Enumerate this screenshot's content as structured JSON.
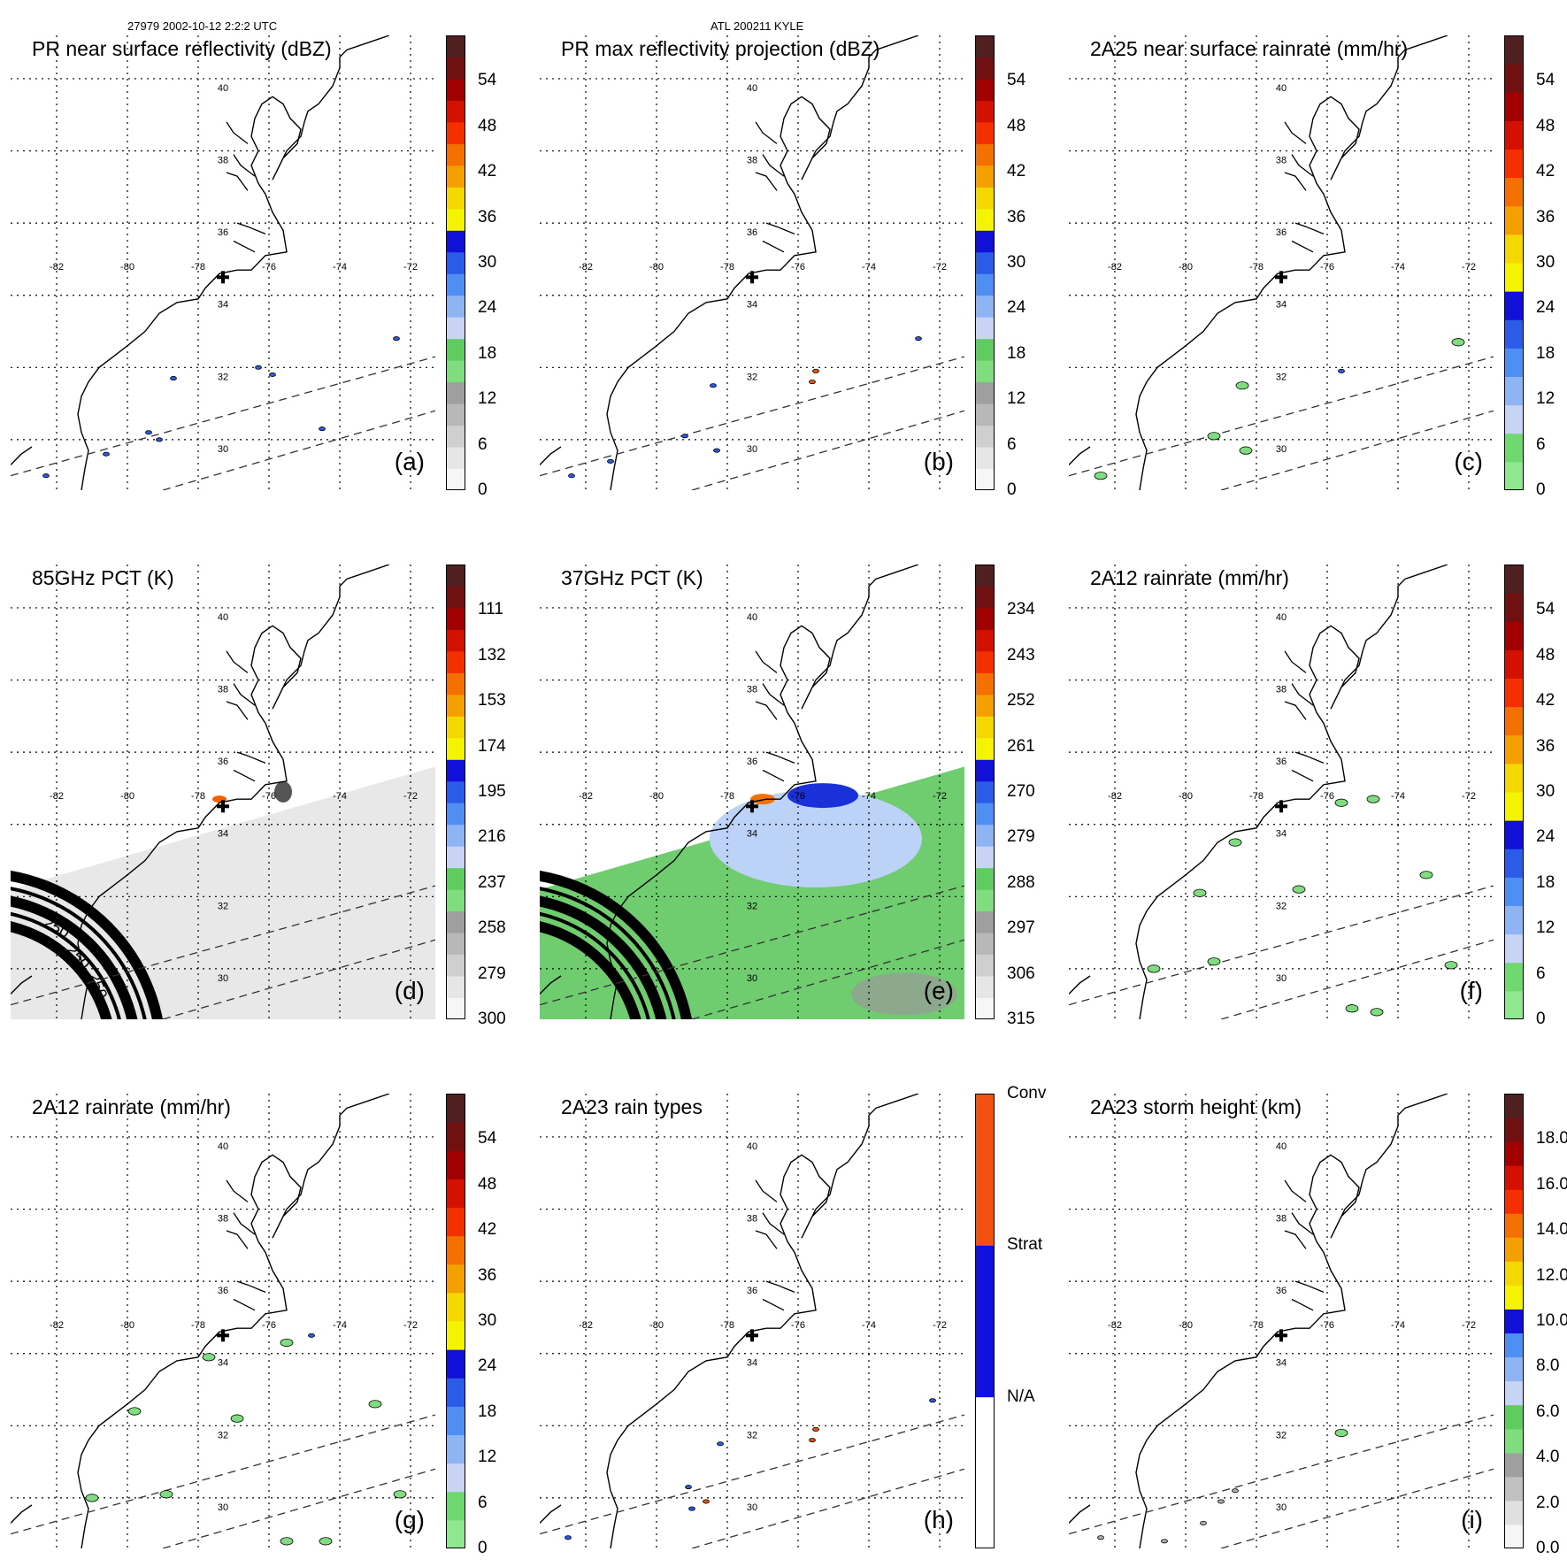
{
  "header": {
    "orbit_time": "27979 2002-10-12 2:2:2 UTC",
    "storm": "ATL 200211 KYLE"
  },
  "map": {
    "lon_labels": [
      "-82",
      "-80",
      "-78",
      "-76",
      "-74",
      "-72"
    ],
    "lat_labels": [
      "30",
      "32",
      "34",
      "36",
      "38",
      "40"
    ],
    "lon_values": [
      -82,
      -80,
      -78,
      -76,
      -74,
      -72
    ],
    "lat_values": [
      30,
      32,
      34,
      36,
      38,
      40
    ],
    "extent": {
      "lon_min": -83.3,
      "lon_max": -71.3,
      "lat_min": 28.6,
      "lat_max": 41.2
    },
    "storm_center": {
      "lon": -77.3,
      "lat": 34.5
    }
  },
  "colors": {
    "coast": "#000000",
    "grid": "#000000",
    "swath": "#333333"
  },
  "panels": [
    {
      "id": "a",
      "title": "PR near surface reflectivity (dBZ)",
      "label": "(a)",
      "ticks": [
        "0",
        "6",
        "12",
        "18",
        "24",
        "30",
        "36",
        "42",
        "48",
        "54"
      ],
      "top_label": "",
      "bar": "standard"
    },
    {
      "id": "b",
      "title": "PR max reflectivity projection (dBZ)",
      "label": "(b)",
      "ticks": [
        "0",
        "6",
        "12",
        "18",
        "24",
        "30",
        "36",
        "42",
        "48",
        "54"
      ],
      "top_label": "",
      "bar": "standard"
    },
    {
      "id": "c",
      "title": "2A25 near surface rainrate (mm/hr)",
      "label": "(c)",
      "ticks": [
        "0",
        "6",
        "12",
        "18",
        "24",
        "30",
        "36",
        "42",
        "48",
        "54"
      ],
      "top_label": "",
      "bar": "rain"
    },
    {
      "id": "d",
      "title": "85GHz PCT (K)",
      "label": "(d)",
      "ticks": [
        "300",
        "279",
        "258",
        "237",
        "216",
        "195",
        "174",
        "153",
        "132",
        "111"
      ],
      "top_label": "",
      "bar": "standard"
    },
    {
      "id": "e",
      "title": "37GHz PCT (K)",
      "label": "(e)",
      "ticks": [
        "315",
        "306",
        "297",
        "288",
        "279",
        "270",
        "261",
        "252",
        "243",
        "234"
      ],
      "top_label": "",
      "bar": "standard"
    },
    {
      "id": "f",
      "title": "2A12 rainrate (mm/hr)",
      "label": "(f)",
      "ticks": [
        "0",
        "6",
        "12",
        "18",
        "24",
        "30",
        "36",
        "42",
        "48",
        "54"
      ],
      "top_label": "",
      "bar": "rain"
    },
    {
      "id": "g",
      "title": "2A12 rainrate (mm/hr)",
      "label": "(g)",
      "ticks": [
        "0",
        "6",
        "12",
        "18",
        "24",
        "30",
        "36",
        "42",
        "48",
        "54"
      ],
      "top_label": "",
      "bar": "rain"
    },
    {
      "id": "h",
      "title": "2A23 rain types",
      "label": "(h)",
      "ticks": [
        "N/A",
        "Strat",
        "Conv"
      ],
      "top_label": "",
      "bar": "types"
    },
    {
      "id": "i",
      "title": "2A23 storm height (km)",
      "label": "(i)",
      "ticks": [
        "0.0",
        "2.0",
        "4.0",
        "6.0",
        "8.0",
        "10.0",
        "12.0",
        "14.0",
        "16.0",
        "18.0"
      ],
      "top_label": "",
      "bar": "height"
    }
  ],
  "tb_ring_labels": [
    "250",
    "250",
    "250"
  ],
  "colorbar_colors": {
    "standard": [
      "#f6f6f6",
      "#e6e6e6",
      "#cfcfcf",
      "#b8b8b8",
      "#9f9f9f",
      "#7fdc7f",
      "#5fcc5f",
      "#c8d4f4",
      "#8fb4f4",
      "#4f8ff4",
      "#2a5ce8",
      "#1010d8",
      "#f4f400",
      "#f4d800",
      "#f4a000",
      "#f47000",
      "#f43000",
      "#d41000",
      "#a00000",
      "#701010",
      "#502020"
    ],
    "rain": [
      "#8fe88f",
      "#6fd86f",
      "#c8d4f4",
      "#8fb4f4",
      "#4f8ff4",
      "#2a5ce8",
      "#1010d8",
      "#f4f400",
      "#f4d800",
      "#f4a000",
      "#f47000",
      "#f43000",
      "#d41000",
      "#a00000",
      "#701010",
      "#502020"
    ],
    "height": [
      "#f6f6f6",
      "#e0e0e0",
      "#c0c0c0",
      "#9f9f9f",
      "#7fdc7f",
      "#5fcc5f",
      "#c8d4f4",
      "#8fb4f4",
      "#4f8ff4",
      "#1010d8",
      "#f4f400",
      "#f4d800",
      "#f4a000",
      "#f47000",
      "#f43000",
      "#d41000",
      "#a00000",
      "#701010",
      "#502020"
    ],
    "types": [
      "#ffffff",
      "#1010e0",
      "#f45010"
    ]
  }
}
